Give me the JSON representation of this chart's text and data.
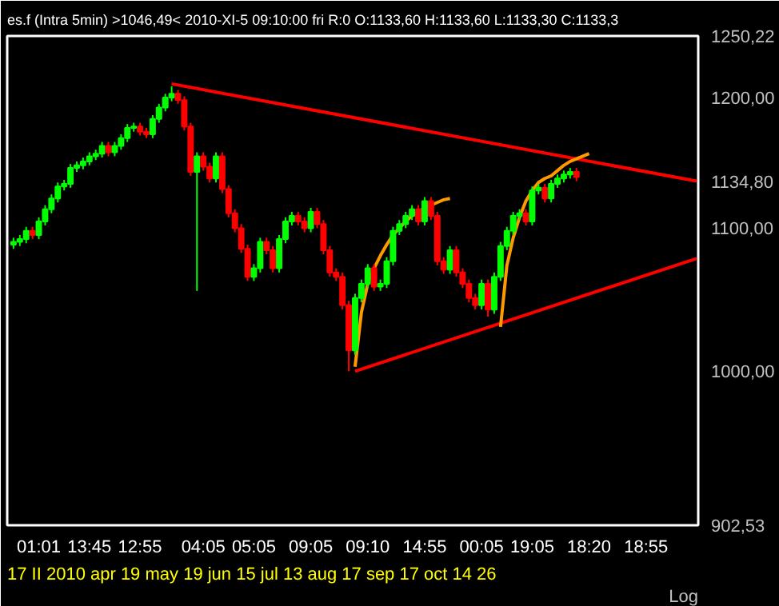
{
  "chart_data": {
    "type": "candlestick",
    "title": "es.f (Intra 5min)   >1046,49<   2010-XI-5   09:10:00 fri   R:0 O:1133,60 H:1133,60 L:1133,30 C:1133,3",
    "categories": [
      null,
      null,
      null,
      null,
      "01:01",
      null,
      null,
      null,
      null,
      null,
      null,
      null,
      "13:45",
      null,
      null,
      null,
      null,
      null,
      null,
      null,
      "12:55",
      null,
      null,
      null,
      null,
      null,
      null,
      null,
      null,
      null,
      "04:05",
      null,
      null,
      null,
      null,
      null,
      null,
      null,
      "05:05",
      null,
      null,
      null,
      null,
      null,
      null,
      null,
      null,
      "09:05",
      null,
      null,
      null,
      null,
      null,
      null,
      null,
      null,
      "09:10",
      null,
      null,
      null,
      null,
      null,
      null,
      null,
      null,
      "14:55",
      null,
      null,
      null,
      null,
      null,
      null,
      null,
      null,
      "00:05",
      null,
      null,
      null,
      null,
      null,
      null,
      null,
      "19:05",
      null,
      null,
      null,
      null,
      null,
      null,
      null,
      null,
      "18:20",
      null,
      null,
      null,
      null,
      null,
      null,
      null,
      null,
      "18:55",
      null,
      null,
      null,
      null,
      null,
      null,
      null,
      null
    ],
    "ohlc": [
      [
        1088,
        1093,
        1085,
        1090
      ],
      [
        1090,
        1095,
        1087,
        1092
      ],
      [
        1092,
        1101,
        1089,
        1098
      ],
      [
        1098,
        1101,
        1092,
        1095
      ],
      [
        1095,
        1108,
        1092,
        1105
      ],
      [
        1105,
        1117,
        1102,
        1114
      ],
      [
        1114,
        1125,
        1111,
        1122
      ],
      [
        1122,
        1134,
        1119,
        1131
      ],
      [
        1131,
        1136,
        1128,
        1133
      ],
      [
        1133,
        1148,
        1130,
        1145
      ],
      [
        1145,
        1150,
        1142,
        1147
      ],
      [
        1147,
        1153,
        1144,
        1150
      ],
      [
        1150,
        1157,
        1147,
        1154
      ],
      [
        1154,
        1159,
        1151,
        1156
      ],
      [
        1156,
        1165,
        1153,
        1162
      ],
      [
        1162,
        1165,
        1154,
        1157
      ],
      [
        1157,
        1165,
        1154,
        1162
      ],
      [
        1162,
        1171,
        1159,
        1168
      ],
      [
        1168,
        1179,
        1165,
        1176
      ],
      [
        1176,
        1180,
        1173,
        1177
      ],
      [
        1177,
        1180,
        1170,
        1173
      ],
      [
        1173,
        1176,
        1168,
        1171
      ],
      [
        1171,
        1186,
        1168,
        1183
      ],
      [
        1183,
        1195,
        1180,
        1192
      ],
      [
        1192,
        1203,
        1189,
        1200
      ],
      [
        1200,
        1209,
        1197,
        1203
      ],
      [
        1203,
        1206,
        1195,
        1198
      ],
      [
        1198,
        1201,
        1174,
        1177
      ],
      [
        1177,
        1180,
        1139,
        1142
      ],
      [
        1142,
        1157,
        1055,
        1154
      ],
      [
        1154,
        1157,
        1143,
        1146
      ],
      [
        1146,
        1149,
        1134,
        1137
      ],
      [
        1137,
        1157,
        1134,
        1154
      ],
      [
        1154,
        1157,
        1126,
        1129
      ],
      [
        1129,
        1132,
        1108,
        1111
      ],
      [
        1111,
        1114,
        1097,
        1100
      ],
      [
        1100,
        1103,
        1082,
        1085
      ],
      [
        1085,
        1088,
        1062,
        1065
      ],
      [
        1065,
        1074,
        1062,
        1071
      ],
      [
        1071,
        1093,
        1068,
        1090
      ],
      [
        1090,
        1093,
        1081,
        1084
      ],
      [
        1084,
        1087,
        1068,
        1071
      ],
      [
        1071,
        1095,
        1068,
        1092
      ],
      [
        1092,
        1108,
        1089,
        1105
      ],
      [
        1105,
        1112,
        1102,
        1109
      ],
      [
        1109,
        1112,
        1102,
        1105
      ],
      [
        1105,
        1108,
        1097,
        1100
      ],
      [
        1100,
        1115,
        1097,
        1112
      ],
      [
        1112,
        1115,
        1100,
        1103
      ],
      [
        1103,
        1106,
        1081,
        1084
      ],
      [
        1084,
        1087,
        1065,
        1068
      ],
      [
        1068,
        1071,
        1062,
        1065
      ],
      [
        1065,
        1068,
        1042,
        1045
      ],
      [
        1045,
        1048,
        1000,
        1014
      ],
      [
        1014,
        1053,
        1011,
        1050
      ],
      [
        1050,
        1063,
        1047,
        1060
      ],
      [
        1060,
        1074,
        1057,
        1071
      ],
      [
        1071,
        1074,
        1055,
        1058
      ],
      [
        1058,
        1063,
        1055,
        1060
      ],
      [
        1060,
        1079,
        1057,
        1076
      ],
      [
        1076,
        1101,
        1073,
        1098
      ],
      [
        1098,
        1106,
        1095,
        1103
      ],
      [
        1103,
        1112,
        1100,
        1109
      ],
      [
        1109,
        1117,
        1106,
        1114
      ],
      [
        1114,
        1117,
        1102,
        1105
      ],
      [
        1105,
        1123,
        1102,
        1120
      ],
      [
        1120,
        1123,
        1106,
        1109
      ],
      [
        1109,
        1112,
        1073,
        1076
      ],
      [
        1076,
        1079,
        1067,
        1070
      ],
      [
        1070,
        1087,
        1067,
        1084
      ],
      [
        1084,
        1087,
        1065,
        1068
      ],
      [
        1068,
        1071,
        1057,
        1060
      ],
      [
        1060,
        1063,
        1047,
        1050
      ],
      [
        1050,
        1053,
        1042,
        1045
      ],
      [
        1045,
        1063,
        1042,
        1060
      ],
      [
        1060,
        1063,
        1037,
        1042
      ],
      [
        1042,
        1068,
        1039,
        1065
      ],
      [
        1065,
        1090,
        1062,
        1087
      ],
      [
        1087,
        1101,
        1084,
        1098
      ],
      [
        1098,
        1112,
        1095,
        1109
      ],
      [
        1109,
        1114,
        1106,
        1111
      ],
      [
        1111,
        1114,
        1102,
        1105
      ],
      [
        1105,
        1131,
        1102,
        1128
      ],
      [
        1128,
        1133,
        1125,
        1130
      ],
      [
        1130,
        1133,
        1119,
        1122
      ],
      [
        1122,
        1136,
        1119,
        1133
      ],
      [
        1133,
        1140,
        1130,
        1137
      ],
      [
        1137,
        1143,
        1134,
        1140
      ],
      [
        1140,
        1145,
        1137,
        1142
      ],
      [
        1142,
        1145,
        1135,
        1138
      ],
      null,
      null,
      null,
      null,
      null,
      null,
      null,
      null,
      null,
      null,
      null,
      null,
      null,
      null,
      null,
      null,
      null,
      null,
      null
    ],
    "colors": [
      "#00ff00",
      "#00ff00",
      "#00ff00",
      "#ff0000",
      "#00ff00",
      "#00ff00",
      "#00ff00",
      "#00ff00",
      "#00ff00",
      "#00ff00",
      "#00ff00",
      "#00ff00",
      "#00ff00",
      "#00ff00",
      "#00ff00",
      "#ff0000",
      "#00ff00",
      "#00ff00",
      "#00ff00",
      "#00ff00",
      "#ff0000",
      "#ff0000",
      "#00ff00",
      "#00ff00",
      "#00ff00",
      "#00ff00",
      "#ff0000",
      "#ff0000",
      "#ff0000",
      "#00ff00",
      "#ff0000",
      "#ff0000",
      "#00ff00",
      "#ff0000",
      "#ff0000",
      "#ff0000",
      "#ff0000",
      "#ff0000",
      "#00ff00",
      "#00ff00",
      "#ff0000",
      "#ff0000",
      "#00ff00",
      "#00ff00",
      "#00ff00",
      "#ff0000",
      "#ff0000",
      "#00ff00",
      "#ff0000",
      "#ff0000",
      "#ff0000",
      "#ff0000",
      "#ff0000",
      "#ff0000",
      "#00ff00",
      "#00ff00",
      "#00ff00",
      "#ff0000",
      "#00ff00",
      "#00ff00",
      "#00ff00",
      "#00ff00",
      "#00ff00",
      "#00ff00",
      "#ff0000",
      "#00ff00",
      "#ff0000",
      "#ff0000",
      "#ff0000",
      "#00ff00",
      "#ff0000",
      "#ff0000",
      "#ff0000",
      "#ff0000",
      "#00ff00",
      "#ff0000",
      "#00ff00",
      "#00ff00",
      "#00ff00",
      "#00ff00",
      "#00ff00",
      "#ff0000",
      "#00ff00",
      "#00ff00",
      "#ff0000",
      "#00ff00",
      "#00ff00",
      "#00ff00",
      "#00ff00",
      "#ff0000",
      null,
      null,
      null,
      null,
      null,
      null,
      null,
      null,
      null,
      null,
      null,
      null,
      null,
      null,
      null,
      null,
      null,
      null,
      null
    ],
    "series": [
      {
        "type": "line",
        "color": "#ff0000",
        "values": [
          null,
          null,
          null,
          null,
          null,
          null,
          null,
          null,
          null,
          null,
          null,
          null,
          null,
          null,
          null,
          null,
          null,
          null,
          null,
          null,
          null,
          null,
          null,
          null,
          null,
          1211,
          null,
          null,
          null,
          null,
          null,
          null,
          null,
          null,
          null,
          null,
          null,
          null,
          null,
          null,
          null,
          null,
          null,
          null,
          null,
          null,
          null,
          null,
          null,
          null,
          null,
          null,
          null,
          null,
          null,
          null,
          null,
          null,
          null,
          null,
          null,
          null,
          null,
          null,
          null,
          null,
          null,
          null,
          null,
          null,
          null,
          null,
          null,
          null,
          null,
          null,
          null,
          null,
          null,
          null,
          null,
          null,
          null,
          null,
          null,
          null,
          null,
          null,
          null,
          null,
          null,
          null,
          null,
          null,
          null,
          null,
          null,
          null,
          null,
          null,
          null,
          null,
          null,
          null,
          null,
          null,
          null,
          null,
          1135
        ]
      },
      {
        "type": "line",
        "color": "#ff0000",
        "values": [
          null,
          null,
          null,
          null,
          null,
          null,
          null,
          null,
          null,
          null,
          null,
          null,
          null,
          null,
          null,
          null,
          null,
          null,
          null,
          null,
          null,
          null,
          null,
          null,
          null,
          null,
          null,
          null,
          null,
          null,
          null,
          null,
          null,
          null,
          null,
          null,
          null,
          null,
          null,
          null,
          null,
          null,
          null,
          null,
          null,
          null,
          null,
          null,
          null,
          null,
          null,
          null,
          null,
          null,
          1000,
          null,
          null,
          null,
          null,
          null,
          null,
          null,
          null,
          null,
          null,
          null,
          null,
          null,
          null,
          null,
          null,
          null,
          null,
          null,
          null,
          null,
          null,
          null,
          null,
          null,
          null,
          null,
          null,
          null,
          null,
          null,
          null,
          null,
          null,
          null,
          null,
          null,
          null,
          null,
          null,
          null,
          null,
          null,
          null,
          null,
          null,
          null,
          null,
          null,
          null,
          null,
          null,
          null,
          1078
        ]
      },
      {
        "type": "line",
        "color": "#ff9900",
        "values": [
          null,
          null,
          null,
          null,
          null,
          null,
          null,
          null,
          null,
          null,
          null,
          null,
          null,
          null,
          null,
          null,
          null,
          null,
          null,
          null,
          null,
          null,
          null,
          null,
          null,
          null,
          null,
          null,
          null,
          null,
          null,
          null,
          null,
          null,
          null,
          null,
          null,
          null,
          null,
          null,
          null,
          null,
          null,
          null,
          null,
          null,
          null,
          null,
          null,
          null,
          null,
          null,
          null,
          null,
          1003,
          1040,
          1060,
          1071,
          1080,
          1088,
          1095,
          1100,
          1105,
          1109,
          1112,
          1115,
          1117,
          1119,
          1121,
          1122,
          null,
          null,
          null,
          null,
          null,
          null,
          null,
          null,
          null,
          null,
          null,
          null,
          null,
          null,
          null,
          null,
          null,
          null,
          null,
          null,
          null,
          null,
          null,
          null,
          null,
          null,
          null,
          null,
          null,
          null,
          null,
          null,
          null,
          null,
          null,
          null,
          null,
          null,
          null
        ]
      },
      {
        "type": "line",
        "color": "#ff9900",
        "values": [
          null,
          null,
          null,
          null,
          null,
          null,
          null,
          null,
          null,
          null,
          null,
          null,
          null,
          null,
          null,
          null,
          null,
          null,
          null,
          null,
          null,
          null,
          null,
          null,
          null,
          null,
          null,
          null,
          null,
          null,
          null,
          null,
          null,
          null,
          null,
          null,
          null,
          null,
          null,
          null,
          null,
          null,
          null,
          null,
          null,
          null,
          null,
          null,
          null,
          null,
          null,
          null,
          null,
          null,
          null,
          null,
          null,
          null,
          null,
          null,
          null,
          null,
          null,
          null,
          null,
          null,
          null,
          null,
          null,
          null,
          null,
          null,
          null,
          null,
          null,
          null,
          null,
          1030,
          1073,
          1093,
          1108,
          1120,
          1128,
          1134,
          1137,
          1139,
          1143,
          1147,
          1150,
          1152,
          1154,
          1156,
          null,
          null,
          null,
          null,
          null,
          null,
          null,
          null,
          null,
          null,
          null,
          null,
          null,
          null,
          null,
          null,
          null
        ]
      }
    ],
    "ylim": [
      902.53,
      1250.22
    ],
    "yticks": [
      {
        "value": 902.53,
        "label": "902,53"
      },
      {
        "value": 1000,
        "label": "1000,00"
      },
      {
        "value": 1100,
        "label": "1100,00"
      },
      {
        "value": 1134.8,
        "label": "1134,80"
      },
      {
        "value": 1200,
        "label": "1200,00"
      },
      {
        "value": 1250.22,
        "label": "1250,22"
      }
    ],
    "log": true,
    "annotations": [
      "17 II 2010   apr   19   may   19   jun   15   jul   13   aug   17   sep   17   oct   14   26",
      "Log"
    ]
  }
}
